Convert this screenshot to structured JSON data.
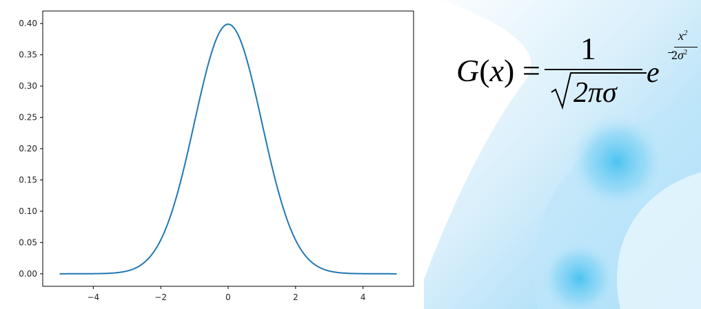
{
  "chart_data": {
    "type": "line",
    "title": "",
    "xlabel": "",
    "ylabel": "",
    "xlim": [
      -5.5,
      5.5
    ],
    "ylim": [
      -0.02,
      0.42
    ],
    "xticks": [
      -4,
      -2,
      0,
      2,
      4
    ],
    "xtick_labels": [
      "−4",
      "−2",
      "0",
      "2",
      "4"
    ],
    "yticks": [
      0.0,
      0.05,
      0.1,
      0.15,
      0.2,
      0.25,
      0.3,
      0.35,
      0.4
    ],
    "ytick_labels": [
      "0.00",
      "0.05",
      "0.10",
      "0.15",
      "0.20",
      "0.25",
      "0.30",
      "0.35",
      "0.40"
    ],
    "grid": false,
    "series": [
      {
        "color": "#1f77b4",
        "function": "standard normal pdf, mu = 0, sigma = 1",
        "x": [
          -5.0,
          -4.5,
          -4.0,
          -3.5,
          -3.0,
          -2.5,
          -2.0,
          -1.5,
          -1.0,
          -0.5,
          0.0,
          0.5,
          1.0,
          1.5,
          2.0,
          2.5,
          3.0,
          3.5,
          4.0,
          4.5,
          5.0
        ],
        "y": [
          0.0,
          0.0,
          0.0001,
          0.0009,
          0.0044,
          0.0175,
          0.054,
          0.1295,
          0.242,
          0.3521,
          0.3989,
          0.3521,
          0.242,
          0.1295,
          0.054,
          0.0175,
          0.0044,
          0.0009,
          0.0001,
          0.0,
          0.0
        ]
      }
    ]
  },
  "formula": {
    "lhs_func": "G",
    "lhs_arg": "x",
    "equals": "=",
    "numerator": "1",
    "radicand": "2πσ",
    "base": "e",
    "exp_sign": "−",
    "exp_num": "x",
    "exp_num_power": "2",
    "exp_den_coef": "2",
    "exp_den_var": "σ",
    "exp_den_power": "2"
  },
  "colors": {
    "line": "#1f77b4",
    "decor_light": "#dff1fc",
    "decor_mid": "#9ed8f6",
    "decor_bright": "#5cc8f2"
  }
}
